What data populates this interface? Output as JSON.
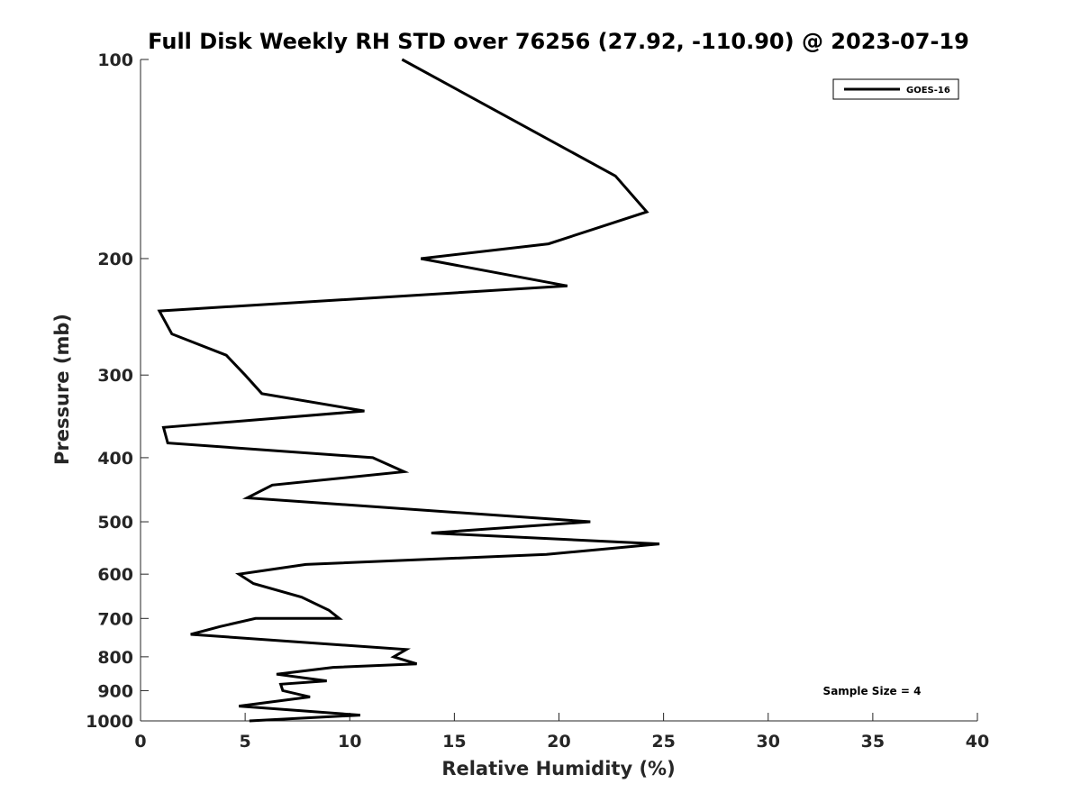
{
  "chart_data": {
    "type": "line",
    "title": "Full Disk Weekly RH STD over 76256 (27.92, -110.90) @ 2023-07-19",
    "xlabel": "Relative Humidity (%)",
    "ylabel": "Pressure (mb)",
    "xlim": [
      0,
      40
    ],
    "ylim": [
      100,
      1000
    ],
    "y_scale": "log",
    "y_reversed": true,
    "grid": false,
    "legend_position": "top-right",
    "x_ticks": [
      "0",
      "5",
      "10",
      "15",
      "20",
      "25",
      "30",
      "35",
      "40"
    ],
    "y_ticks": [
      "100",
      "200",
      "300",
      "400",
      "500",
      "600",
      "700",
      "800",
      "900",
      "1000"
    ],
    "annotation": "Sample Size = 4",
    "series": [
      {
        "name": "GOES-16",
        "color": "#000000",
        "x": [
          12.5,
          22.7,
          24.2,
          19.5,
          13.4,
          20.4,
          0.9,
          1.5,
          4.1,
          5.0,
          5.8,
          10.7,
          1.1,
          1.3,
          11.1,
          12.6,
          6.3,
          5.1,
          21.5,
          13.9,
          24.8,
          19.4,
          7.9,
          4.7,
          5.4,
          7.7,
          9.0,
          9.5,
          5.5,
          3.8,
          2.4,
          12.7,
          12.1,
          13.2,
          9.2,
          6.5,
          8.9,
          6.7,
          6.8,
          8.1,
          4.7,
          10.5,
          5.2
        ],
        "y": [
          100,
          150,
          170,
          190,
          200,
          220,
          240,
          260,
          280,
          300,
          320,
          340,
          360,
          380,
          400,
          420,
          440,
          460,
          500,
          520,
          540,
          560,
          580,
          600,
          620,
          650,
          680,
          700,
          700,
          720,
          740,
          780,
          800,
          820,
          830,
          850,
          870,
          880,
          900,
          920,
          950,
          980,
          1000
        ]
      }
    ]
  }
}
